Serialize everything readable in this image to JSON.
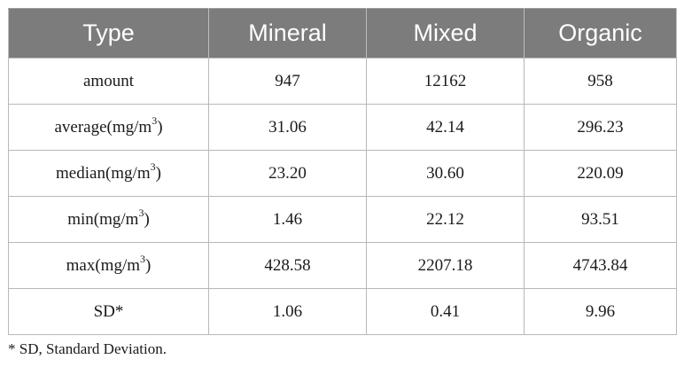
{
  "table": {
    "headers": [
      "Type",
      "Mineral",
      "Mixed",
      "Organic"
    ],
    "rows": [
      {
        "label": "amount",
        "unit_sup": "",
        "suffix": "",
        "values": [
          "947",
          "12162",
          "958"
        ]
      },
      {
        "label": "average(mg/m",
        "unit_sup": "3",
        "suffix": ")",
        "values": [
          "31.06",
          "42.14",
          "296.23"
        ]
      },
      {
        "label": "median(mg/m",
        "unit_sup": "3",
        "suffix": ")",
        "values": [
          "23.20",
          "30.60",
          "220.09"
        ]
      },
      {
        "label": "min(mg/m",
        "unit_sup": "3",
        "suffix": ")",
        "values": [
          "1.46",
          "22.12",
          "93.51"
        ]
      },
      {
        "label": "max(mg/m",
        "unit_sup": "3",
        "suffix": ")",
        "values": [
          "428.58",
          "2207.18",
          "4743.84"
        ]
      },
      {
        "label": "SD*",
        "unit_sup": "",
        "suffix": "",
        "values": [
          "1.06",
          "0.41",
          "9.96"
        ]
      }
    ]
  },
  "footnote": "* SD, Standard Deviation.",
  "colors": {
    "header_bg": "#7c7c7c",
    "header_text": "#ffffff",
    "grid": "#b8b8b8"
  }
}
